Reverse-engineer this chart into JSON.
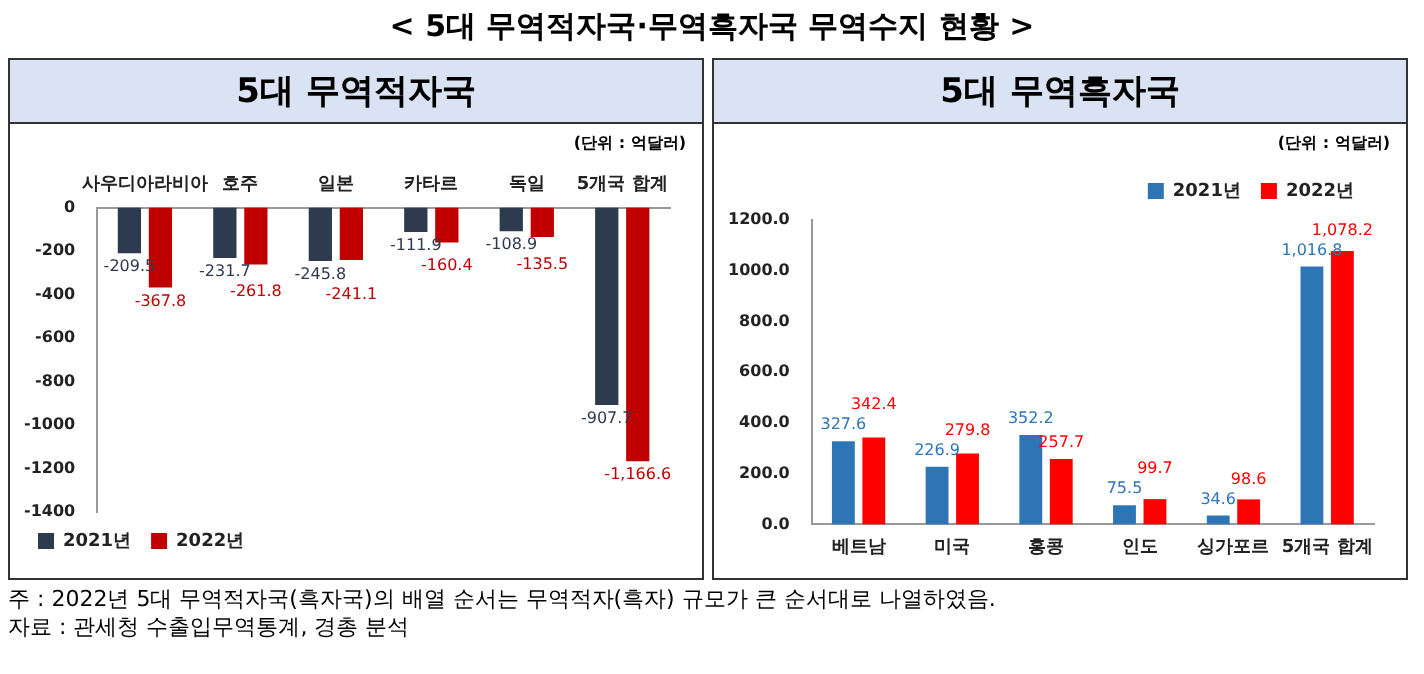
{
  "chart_data": [
    {
      "type": "bar",
      "title": "5대 무역적자국",
      "annotations": [
        "< 5대 무역적자국·무역흑자국 무역수지 현황 >",
        "(단위 : 억달러)",
        "주 : 2022년 5대 무역적자국(흑자국)의 배열 순서는 무역적자(흑자) 규모가 큰 순서대로 나열하였음.",
        "자료 : 관세청 수출입무역통계, 경총 분석"
      ],
      "categories": [
        "사우디아라비아",
        "호주",
        "일본",
        "카타르",
        "독일",
        "5개국 합계"
      ],
      "series": [
        {
          "name": "2021년",
          "color": "#2e3a4e",
          "values": [
            -209.5,
            -231.7,
            -245.8,
            -111.9,
            -108.9,
            -907.7
          ],
          "value_labels": [
            "-209.5",
            "-231.7",
            "-245.8",
            "-111.9",
            "-108.9",
            "-907.7"
          ]
        },
        {
          "name": "2022년",
          "color": "#c00000",
          "values": [
            -367.8,
            -261.8,
            -241.1,
            -160.4,
            -135.5,
            -1166.6
          ],
          "value_labels": [
            "-367.8",
            "-261.8",
            "-241.1",
            "-160.4",
            "-135.5",
            "-1,166.6"
          ]
        }
      ],
      "ylim": [
        -1400,
        0
      ],
      "yticks": [
        0,
        -200,
        -400,
        -600,
        -800,
        -1000,
        -1200,
        -1400
      ],
      "grid": false,
      "legend": "bottom left"
    },
    {
      "type": "bar",
      "title": "5대 무역흑자국",
      "annotations": [
        "(단위 : 억달러)"
      ],
      "categories": [
        "베트남",
        "미국",
        "홍콩",
        "인도",
        "싱가포르",
        "5개국 합계"
      ],
      "series": [
        {
          "name": "2021년",
          "color": "#2e75b6",
          "values": [
            327.6,
            226.9,
            352.2,
            75.5,
            34.6,
            1016.8
          ],
          "value_labels": [
            "327.6",
            "226.9",
            "352.2",
            "75.5",
            "34.6",
            "1,016.8"
          ]
        },
        {
          "name": "2022년",
          "color": "#ff0000",
          "values": [
            342.4,
            279.8,
            257.7,
            99.7,
            98.6,
            1078.2
          ],
          "value_labels": [
            "342.4",
            "279.8",
            "257.7",
            "99.7",
            "98.6",
            "1,078.2"
          ]
        }
      ],
      "ylim": [
        0,
        1200
      ],
      "yticks": [
        {
          "value": 0,
          "label": "0.0"
        },
        {
          "value": 200,
          "label": "200.0"
        },
        {
          "value": 400,
          "label": "400.0"
        },
        {
          "value": 600,
          "label": "600.0"
        },
        {
          "value": 800,
          "label": "800.0"
        },
        {
          "value": 1000,
          "label": "1000.0"
        },
        {
          "value": 1200,
          "label": "1200.0"
        }
      ],
      "grid": false,
      "legend": "top right"
    }
  ]
}
